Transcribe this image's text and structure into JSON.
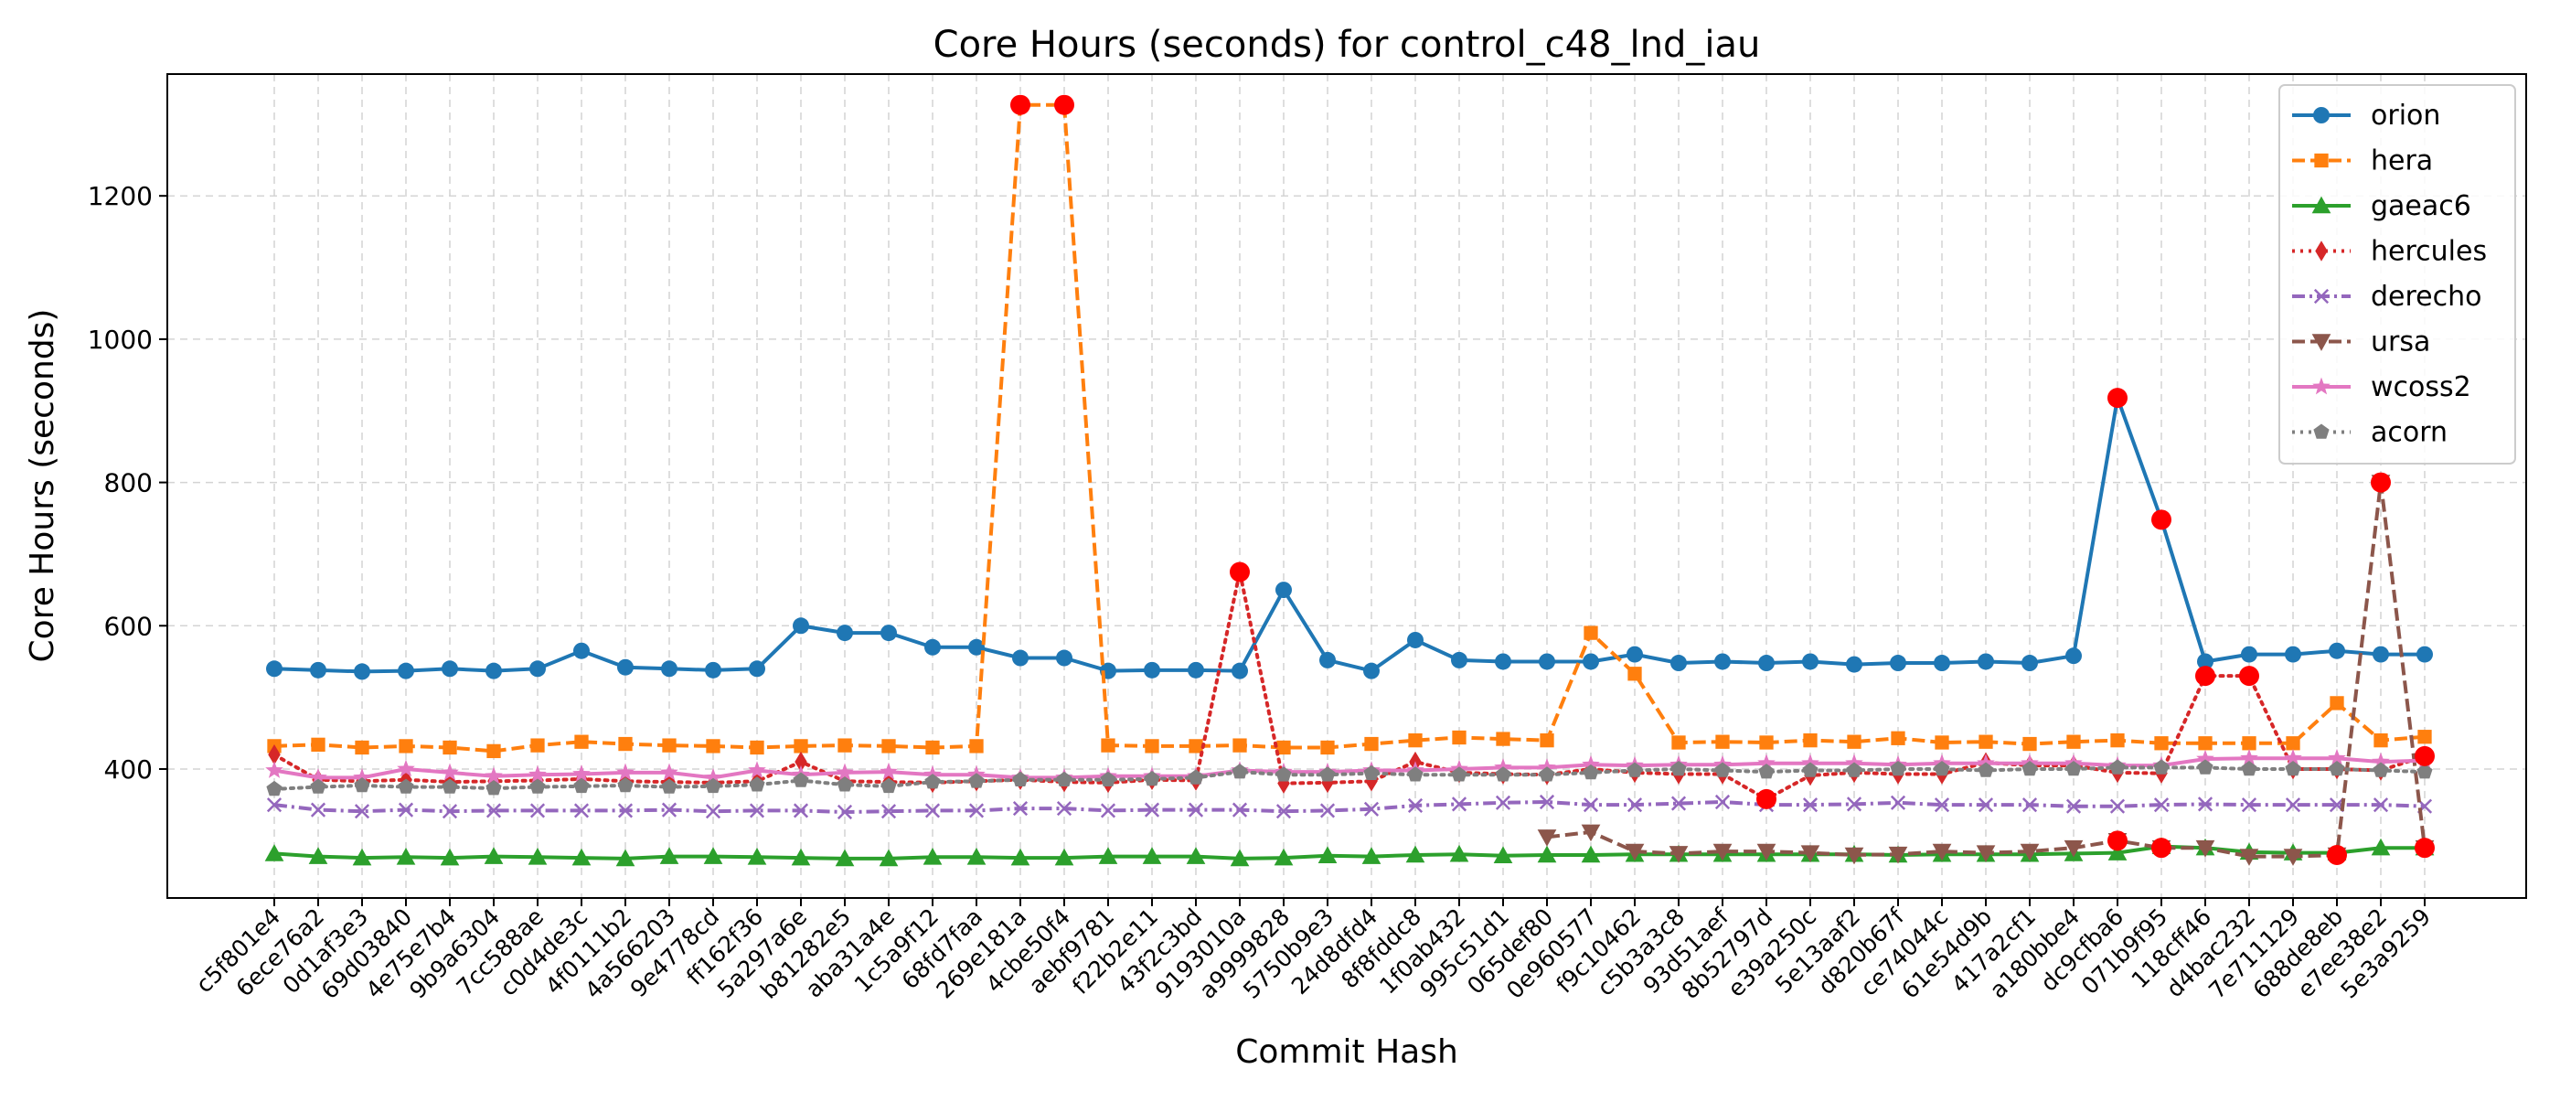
{
  "chart_data": {
    "type": "line",
    "title": "Core Hours (seconds) for control_c48_lnd_iau",
    "xlabel": "Commit Hash",
    "ylabel": "Core Hours (seconds)",
    "ylim": [
      220,
      1370
    ],
    "yticks": [
      400,
      600,
      800,
      1000,
      1200
    ],
    "grid": true,
    "legend_position": "top-right",
    "outlier_color": "#ff0000",
    "categories": [
      "c5f801e4",
      "6ece76a2",
      "0d1af3e3",
      "69d03840",
      "4e75e7b4",
      "9b9a6304",
      "7cc588ae",
      "c0d4de3c",
      "4f0111b2",
      "4a566203",
      "9e4778cd",
      "ff162f36",
      "5a297a6e",
      "b81282e5",
      "aba31a4e",
      "1c5a9f12",
      "68fd7faa",
      "269e181a",
      "4cbe50f4",
      "aebf9781",
      "f22b2e11",
      "43f2c3bd",
      "9193010a",
      "a9999828",
      "5750b9e3",
      "24d8dfd4",
      "8f8fddc8",
      "1f0ab432",
      "995c51d1",
      "065def80",
      "0e960577",
      "f9c10462",
      "c5b3a3c8",
      "93d51aef",
      "8b52797d",
      "e39a250c",
      "5e13aaf2",
      "d820b67f",
      "ce74044c",
      "61e54d9b",
      "417a2cf1",
      "a180bbe4",
      "dc9cfba6",
      "071b9f95",
      "118cff46",
      "d4bac232",
      "7e711129",
      "688de8eb",
      "e7ee38e2",
      "5e3a9259"
    ],
    "series": [
      {
        "name": "orion",
        "color": "#1f77b4",
        "dash": "solid",
        "marker": "circle",
        "values": [
          540,
          538,
          536,
          537,
          540,
          537,
          540,
          565,
          542,
          540,
          538,
          540,
          600,
          590,
          590,
          570,
          570,
          555,
          555,
          537,
          538,
          538,
          537,
          650,
          552,
          537,
          580,
          552,
          550,
          550,
          550,
          560,
          548,
          550,
          548,
          550,
          546,
          548,
          548,
          550,
          548,
          558,
          918,
          748,
          550,
          560,
          560,
          565,
          560,
          560
        ],
        "outliers": [
          42,
          43
        ]
      },
      {
        "name": "hera",
        "color": "#ff7f0e",
        "dash": "dashed",
        "marker": "square",
        "values": [
          432,
          434,
          430,
          432,
          430,
          425,
          433,
          438,
          435,
          433,
          432,
          430,
          432,
          433,
          432,
          430,
          432,
          1327,
          1327,
          433,
          432,
          432,
          433,
          430,
          430,
          435,
          440,
          444,
          442,
          440,
          590,
          533,
          437,
          438,
          437,
          440,
          438,
          443,
          437,
          438,
          435,
          438,
          440,
          436,
          436,
          436,
          436,
          492,
          440,
          445
        ],
        "outliers": [
          17,
          18
        ]
      },
      {
        "name": "gaeac6",
        "color": "#2ca02c",
        "dash": "solid",
        "marker": "triangle-up",
        "values": [
          282,
          278,
          276,
          277,
          276,
          278,
          277,
          276,
          275,
          278,
          278,
          277,
          276,
          275,
          275,
          277,
          277,
          276,
          276,
          278,
          278,
          278,
          275,
          276,
          279,
          278,
          280,
          281,
          279,
          280,
          280,
          281,
          281,
          281,
          281,
          281,
          281,
          280,
          281,
          281,
          281,
          282,
          283,
          292,
          290,
          284,
          283,
          283,
          290,
          290
        ],
        "outliers": []
      },
      {
        "name": "hercules",
        "color": "#d62728",
        "dash": "dotted",
        "marker": "diamond",
        "values": [
          420,
          385,
          383,
          385,
          382,
          383,
          384,
          386,
          383,
          382,
          381,
          383,
          410,
          383,
          382,
          381,
          383,
          385,
          382,
          381,
          385,
          384,
          675,
          380,
          381,
          383,
          410,
          395,
          393,
          392,
          400,
          395,
          393,
          393,
          358,
          391,
          395,
          393,
          393,
          409,
          405,
          405,
          395,
          394,
          530,
          530,
          400,
          400,
          398,
          418
        ],
        "outliers": [
          22,
          34,
          44,
          45,
          49
        ]
      },
      {
        "name": "derecho",
        "color": "#9467bd",
        "dash": "dashdot",
        "marker": "x",
        "values": [
          350,
          343,
          341,
          343,
          341,
          342,
          342,
          342,
          342,
          343,
          341,
          342,
          342,
          340,
          341,
          342,
          342,
          345,
          345,
          342,
          343,
          343,
          343,
          341,
          342,
          344,
          349,
          351,
          353,
          354,
          350,
          350,
          352,
          354,
          350,
          350,
          351,
          353,
          350,
          350,
          350,
          348,
          348,
          350,
          351,
          350,
          350,
          350,
          350,
          348
        ],
        "outliers": []
      },
      {
        "name": "ursa",
        "color": "#8c564b",
        "dash": "dashed",
        "marker": "triangle-down",
        "values": [
          null,
          null,
          null,
          null,
          null,
          null,
          null,
          null,
          null,
          null,
          null,
          null,
          null,
          null,
          null,
          null,
          null,
          null,
          null,
          null,
          null,
          null,
          null,
          null,
          null,
          null,
          null,
          null,
          null,
          305,
          312,
          285,
          282,
          285,
          285,
          283,
          280,
          281,
          285,
          283,
          285,
          290,
          300,
          290,
          290,
          278,
          278,
          280,
          800,
          290
        ],
        "outliers": [
          42,
          43,
          47,
          48,
          49
        ]
      },
      {
        "name": "wcoss2",
        "color": "#e377c2",
        "dash": "solid",
        "marker": "star",
        "values": [
          398,
          388,
          388,
          400,
          395,
          390,
          392,
          393,
          395,
          395,
          388,
          398,
          392,
          395,
          396,
          392,
          392,
          388,
          388,
          390,
          390,
          390,
          398,
          396,
          396,
          398,
          398,
          400,
          402,
          402,
          406,
          405,
          406,
          406,
          408,
          408,
          408,
          406,
          408,
          408,
          408,
          408,
          405,
          405,
          414,
          415,
          415,
          415,
          410,
          412
        ],
        "outliers": []
      },
      {
        "name": "acorn",
        "color": "#7f7f7f",
        "dash": "dotted",
        "marker": "pentagon",
        "values": [
          372,
          375,
          377,
          375,
          375,
          373,
          375,
          376,
          377,
          375,
          376,
          378,
          384,
          378,
          376,
          382,
          383,
          385,
          385,
          385,
          386,
          388,
          396,
          392,
          392,
          394,
          392,
          392,
          392,
          392,
          395,
          398,
          400,
          398,
          396,
          398,
          398,
          400,
          400,
          398,
          400,
          400,
          402,
          402,
          402,
          400,
          400,
          400,
          398,
          396
        ],
        "outliers": []
      }
    ]
  }
}
